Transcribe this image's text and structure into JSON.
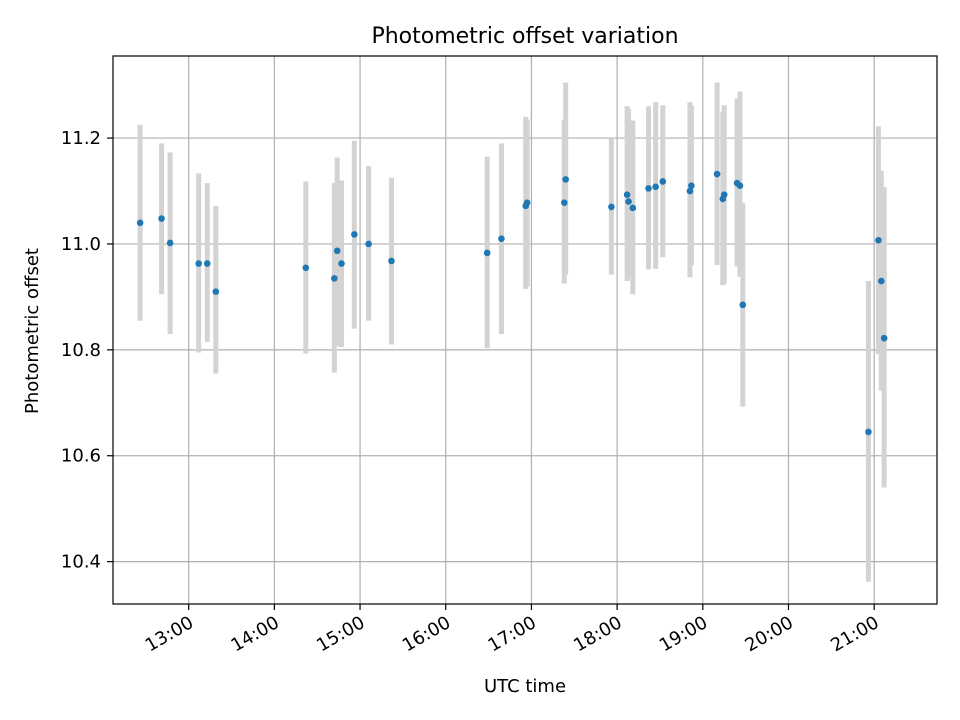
{
  "chart_data": {
    "type": "scatter",
    "title": "Photometric offset variation",
    "xlabel": "UTC time",
    "ylabel": "Photometric offset",
    "x_tick_labels": [
      "13:00",
      "14:00",
      "15:00",
      "16:00",
      "17:00",
      "18:00",
      "19:00",
      "20:00",
      "21:00"
    ],
    "y_ticks": [
      10.4,
      10.6,
      10.8,
      11.0,
      11.2
    ],
    "y_tick_labels": [
      "10.4",
      "10.6",
      "10.8",
      "11.0",
      "11.2"
    ],
    "xlim": [
      "12:07",
      "21:44"
    ],
    "ylim": [
      10.32,
      11.355
    ],
    "grid": true,
    "colors": {
      "points": "#1f77b4",
      "errorbars": "#d3d3d3",
      "grid": "#b0b0b0"
    },
    "points": [
      {
        "t": "12:26",
        "y": 11.04,
        "lo": 10.855,
        "hi": 11.225
      },
      {
        "t": "12:41",
        "y": 11.048,
        "lo": 10.905,
        "hi": 11.19
      },
      {
        "t": "12:47",
        "y": 11.002,
        "lo": 10.83,
        "hi": 11.173
      },
      {
        "t": "13:07",
        "y": 10.963,
        "lo": 10.795,
        "hi": 11.133
      },
      {
        "t": "13:13",
        "y": 10.963,
        "lo": 10.815,
        "hi": 11.115
      },
      {
        "t": "13:19",
        "y": 10.91,
        "lo": 10.755,
        "hi": 11.072
      },
      {
        "t": "14:22",
        "y": 10.955,
        "lo": 10.793,
        "hi": 11.118
      },
      {
        "t": "14:42",
        "y": 10.935,
        "lo": 10.757,
        "hi": 11.115
      },
      {
        "t": "14:44",
        "y": 10.987,
        "lo": 10.807,
        "hi": 11.163
      },
      {
        "t": "14:47",
        "y": 10.963,
        "lo": 10.805,
        "hi": 11.12
      },
      {
        "t": "14:56",
        "y": 11.018,
        "lo": 10.84,
        "hi": 11.195
      },
      {
        "t": "15:06",
        "y": 11.0,
        "lo": 10.855,
        "hi": 11.147
      },
      {
        "t": "15:22",
        "y": 10.968,
        "lo": 10.81,
        "hi": 11.125
      },
      {
        "t": "16:29",
        "y": 10.983,
        "lo": 10.803,
        "hi": 11.165
      },
      {
        "t": "16:39",
        "y": 11.01,
        "lo": 10.83,
        "hi": 11.19
      },
      {
        "t": "16:56",
        "y": 11.072,
        "lo": 10.915,
        "hi": 11.24
      },
      {
        "t": "16:57",
        "y": 11.078,
        "lo": 10.92,
        "hi": 11.235
      },
      {
        "t": "17:23",
        "y": 11.078,
        "lo": 10.925,
        "hi": 11.235
      },
      {
        "t": "17:24",
        "y": 11.122,
        "lo": 10.942,
        "hi": 11.305
      },
      {
        "t": "17:56",
        "y": 11.07,
        "lo": 10.942,
        "hi": 11.2
      },
      {
        "t": "18:07",
        "y": 11.093,
        "lo": 10.93,
        "hi": 11.26
      },
      {
        "t": "18:08",
        "y": 11.08,
        "lo": 10.935,
        "hi": 11.255
      },
      {
        "t": "18:11",
        "y": 11.068,
        "lo": 10.905,
        "hi": 11.233
      },
      {
        "t": "18:22",
        "y": 11.105,
        "lo": 10.952,
        "hi": 11.26
      },
      {
        "t": "18:27",
        "y": 11.108,
        "lo": 10.953,
        "hi": 11.268
      },
      {
        "t": "18:32",
        "y": 11.118,
        "lo": 10.975,
        "hi": 11.262
      },
      {
        "t": "18:51",
        "y": 11.1,
        "lo": 10.937,
        "hi": 11.268
      },
      {
        "t": "18:52",
        "y": 11.11,
        "lo": 10.96,
        "hi": 11.262
      },
      {
        "t": "19:10",
        "y": 11.132,
        "lo": 10.96,
        "hi": 11.305
      },
      {
        "t": "19:14",
        "y": 11.085,
        "lo": 10.922,
        "hi": 11.25
      },
      {
        "t": "19:15",
        "y": 11.093,
        "lo": 10.925,
        "hi": 11.262
      },
      {
        "t": "19:24",
        "y": 11.115,
        "lo": 10.958,
        "hi": 11.275
      },
      {
        "t": "19:26",
        "y": 11.11,
        "lo": 10.938,
        "hi": 11.288
      },
      {
        "t": "19:28",
        "y": 10.885,
        "lo": 10.693,
        "hi": 11.077
      },
      {
        "t": "20:56",
        "y": 10.645,
        "lo": 10.362,
        "hi": 10.93
      },
      {
        "t": "21:03",
        "y": 11.007,
        "lo": 10.792,
        "hi": 11.222
      },
      {
        "t": "21:05",
        "y": 10.93,
        "lo": 10.723,
        "hi": 11.138
      },
      {
        "t": "21:07",
        "y": 10.822,
        "lo": 10.54,
        "hi": 11.107
      }
    ]
  }
}
